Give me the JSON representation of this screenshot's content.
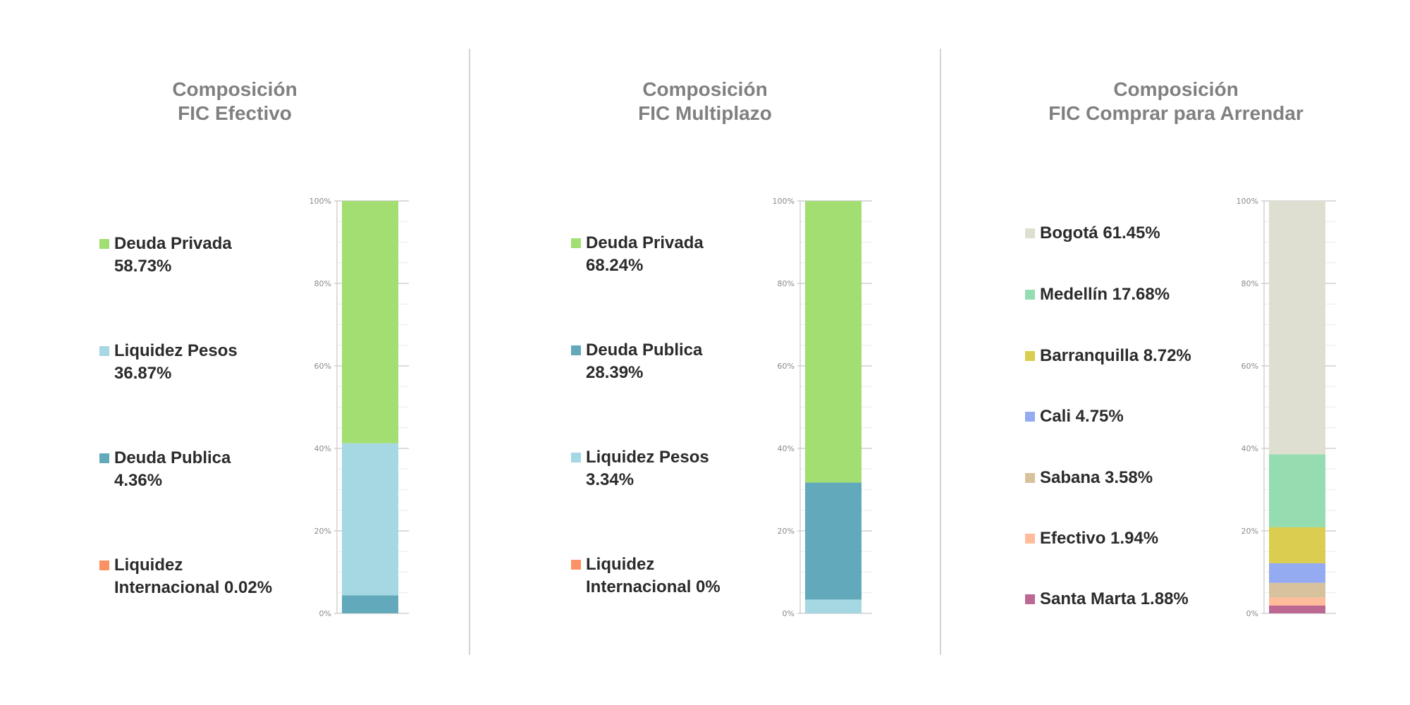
{
  "chart_data": [
    {
      "type": "bar",
      "stacked": true,
      "title": [
        "Composición",
        "FIC Efectivo"
      ],
      "ylim": [
        0,
        100
      ],
      "yticks": [
        "0%",
        "20%",
        "40%",
        "60%",
        "80%",
        "100%"
      ],
      "grid": true,
      "series": [
        {
          "name": "Deuda Privada",
          "legend_lines": [
            "Deuda Privada",
            "58.73%"
          ],
          "value": 58.73,
          "color": "#a3de72"
        },
        {
          "name": "Liquidez Pesos",
          "legend_lines": [
            "Liquidez Pesos",
            "36.87%"
          ],
          "value": 36.87,
          "color": "#a6d8e3"
        },
        {
          "name": "Deuda Publica",
          "legend_lines": [
            "Deuda Publica",
            "4.36%"
          ],
          "value": 4.36,
          "color": "#62aabb"
        },
        {
          "name": "Liquidez Internacional",
          "legend_lines": [
            "Liquidez",
            "Internacional 0.02%"
          ],
          "value": 0.02,
          "color": "#fb9264"
        }
      ]
    },
    {
      "type": "bar",
      "stacked": true,
      "title": [
        "Composición",
        "FIC Multiplazo"
      ],
      "ylim": [
        0,
        100
      ],
      "yticks": [
        "0%",
        "20%",
        "40%",
        "60%",
        "80%",
        "100%"
      ],
      "grid": true,
      "series": [
        {
          "name": "Deuda Privada",
          "legend_lines": [
            "Deuda Privada",
            "68.24%"
          ],
          "value": 68.24,
          "color": "#a3de72"
        },
        {
          "name": "Deuda Publica",
          "legend_lines": [
            "Deuda Publica",
            "28.39%"
          ],
          "value": 28.39,
          "color": "#62aabb"
        },
        {
          "name": "Liquidez Pesos",
          "legend_lines": [
            "Liquidez Pesos",
            "3.34%"
          ],
          "value": 3.34,
          "color": "#a6d8e3"
        },
        {
          "name": "Liquidez Internacional",
          "legend_lines": [
            "Liquidez",
            "Internacional 0%"
          ],
          "value": 0,
          "color": "#fb9264"
        }
      ]
    },
    {
      "type": "bar",
      "stacked": true,
      "title": [
        "Composición",
        "FIC Comprar para Arrendar"
      ],
      "ylim": [
        0,
        100
      ],
      "yticks": [
        "0%",
        "20%",
        "40%",
        "60%",
        "80%",
        "100%"
      ],
      "grid": true,
      "series": [
        {
          "name": "Bogotá",
          "legend_lines": [
            "Bogotá 61.45%"
          ],
          "value": 61.45,
          "color": "#dedfd1"
        },
        {
          "name": "Medellín",
          "legend_lines": [
            "Medellín 17.68%"
          ],
          "value": 17.68,
          "color": "#95dcb1"
        },
        {
          "name": "Barranquilla",
          "legend_lines": [
            "Barranquilla 8.72%"
          ],
          "value": 8.72,
          "color": "#dbcd4f"
        },
        {
          "name": "Cali",
          "legend_lines": [
            "Cali 4.75%"
          ],
          "value": 4.75,
          "color": "#94abf1"
        },
        {
          "name": "Sabana",
          "legend_lines": [
            "Sabana 3.58%"
          ],
          "value": 3.58,
          "color": "#d8c29d"
        },
        {
          "name": "Efectivo",
          "legend_lines": [
            "Efectivo 1.94%"
          ],
          "value": 1.94,
          "color": "#ffbc9b"
        },
        {
          "name": "Santa Marta",
          "legend_lines": [
            "Santa Marta 1.88%"
          ],
          "value": 1.88,
          "color": "#bc6893"
        }
      ]
    }
  ]
}
